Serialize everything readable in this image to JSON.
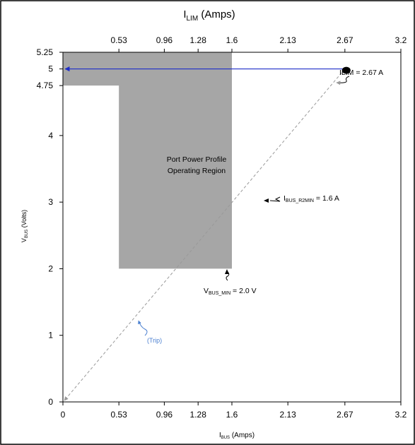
{
  "chart_data": {
    "type": "area",
    "top_axis_title": {
      "base": "I",
      "sub": "LIM",
      "rest": " (Amps)"
    },
    "xlabel": {
      "base": "I",
      "sub": "BUS",
      "rest": " (Amps)"
    },
    "ylabel": {
      "base": "V",
      "sub": "BUS",
      "rest": " (Volts)"
    },
    "xlim": [
      0,
      3.2
    ],
    "ylim": [
      0,
      5.25
    ],
    "x_ticks": [
      0.53,
      0.96,
      1.28,
      1.6,
      2.13,
      2.67,
      3.2
    ],
    "x_tick_labels": [
      "0.53",
      "0.96",
      "1.28",
      "1.6",
      "2.13",
      "2.67",
      "3.2"
    ],
    "x_bottom_origin_label": "0",
    "y_ticks": [
      0,
      1,
      2,
      3,
      4,
      4.75,
      5,
      5.25
    ],
    "y_tick_labels": [
      "0",
      "1",
      "2",
      "3",
      "4",
      "4.75",
      "5",
      "5.25"
    ],
    "region": {
      "label_line1": "Port Power Profile",
      "label_line2": "Operating Region",
      "color": "#a6a6a6",
      "polygon": [
        [
          0,
          5.25
        ],
        [
          1.6,
          5.25
        ],
        [
          1.6,
          2.0
        ],
        [
          0.53,
          2.0
        ],
        [
          0.53,
          4.75
        ],
        [
          0,
          4.75
        ]
      ]
    },
    "load_line": {
      "from": [
        2.67,
        5.0
      ],
      "to": [
        0,
        5.0
      ],
      "color": "#1f2ec8"
    },
    "trip_line": {
      "from": [
        2.67,
        5.0
      ],
      "to": [
        0,
        0
      ],
      "color": "#999999"
    },
    "operating_point": {
      "x": 2.67,
      "y": 5.0,
      "label": "ILIM = 2.67 A"
    },
    "annotations": {
      "ibus_r2min": {
        "base": "I",
        "sub": "BUS_R2MIN",
        "rest": " = 1.6 A",
        "x": 1.6,
        "y": 3.0
      },
      "vbus_min": {
        "base": "V",
        "sub": "BUS_MIN",
        "rest": " = 2.0 V",
        "x": 1.3,
        "y": 2.0
      },
      "trip": {
        "label": "(Trip)",
        "color": "#4a7fd0"
      }
    }
  }
}
